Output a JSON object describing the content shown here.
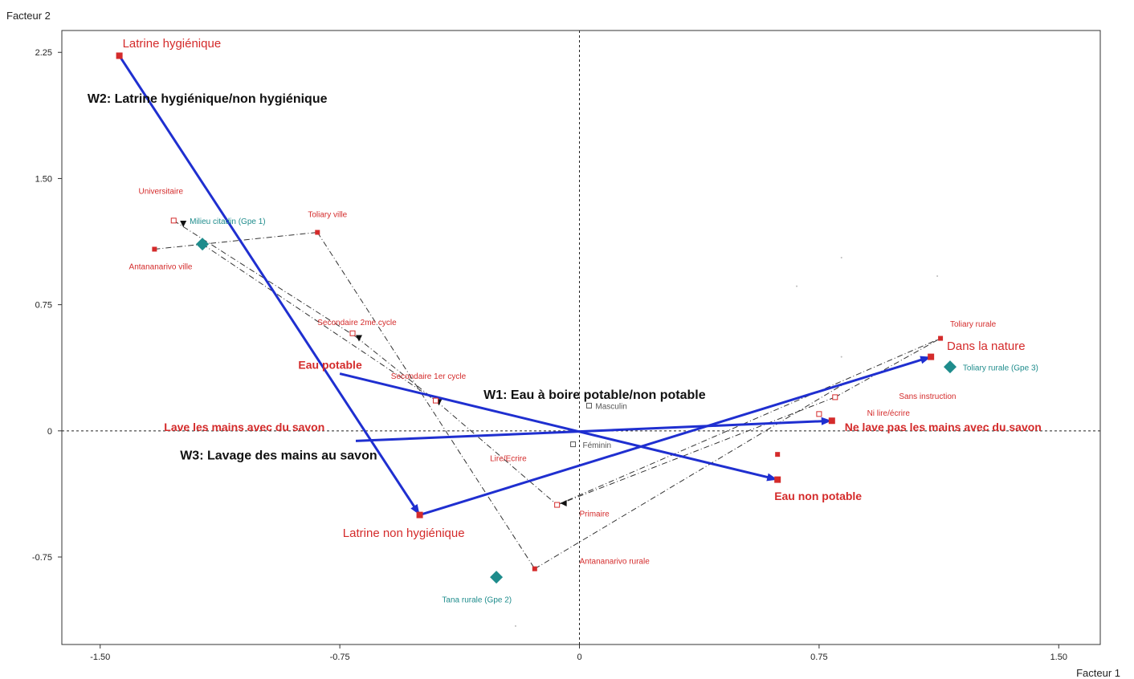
{
  "chart_data": {
    "type": "scatter",
    "xlabel": "Facteur 1",
    "ylabel": "Facteur 2",
    "xlim": [
      -1.62,
      1.63
    ],
    "ylim": [
      -1.27,
      2.38
    ],
    "xticks": [
      {
        "value": -1.5,
        "label": "-1.50"
      },
      {
        "value": -0.75,
        "label": "-0.75"
      },
      {
        "value": 0,
        "label": "0"
      },
      {
        "value": 0.75,
        "label": "0.75"
      },
      {
        "value": 1.5,
        "label": "1.50"
      }
    ],
    "yticks": [
      {
        "value": 2.25,
        "label": "2.25"
      },
      {
        "value": 1.5,
        "label": "1.50"
      },
      {
        "value": 0.75,
        "label": "0.75"
      },
      {
        "value": 0,
        "label": "0"
      },
      {
        "value": -0.75,
        "label": "-0.75"
      }
    ],
    "colors": {
      "red": "#d42b2b",
      "teal": "#1e8c8c",
      "blue": "#1f2fd0",
      "black": "#111111",
      "gray": "#555555"
    },
    "arrows": [
      {
        "from": [
          -1.44,
          2.23
        ],
        "to": [
          -0.5,
          -0.5
        ],
        "label": "W2: Latrine hygiénique/non hygiénique",
        "lx": -1.54,
        "ly": 1.95
      },
      {
        "from": [
          -0.75,
          0.34
        ],
        "to": [
          0.62,
          -0.29
        ],
        "label": "W1: Eau à boire potable/non potable",
        "lx": -0.3,
        "ly": 0.19
      },
      {
        "from": [
          -0.7,
          -0.06
        ],
        "to": [
          0.79,
          0.06
        ],
        "label": "W3: Lavage des mains au savon",
        "lx": -1.25,
        "ly": -0.17
      },
      {
        "from": [
          -0.5,
          -0.5
        ],
        "to": [
          1.1,
          0.44
        ],
        "label": "",
        "lx": 0,
        "ly": 0
      }
    ],
    "points": [
      {
        "label": "Latrine hygiénique",
        "x": -1.44,
        "y": 2.23,
        "marker": "square",
        "color": "red",
        "size": 15,
        "lx": -1.43,
        "ly": 2.28,
        "anchor": "start",
        "bold": false
      },
      {
        "label": "Latrine non hygiénique",
        "x": -0.5,
        "y": -0.5,
        "marker": "square",
        "color": "red",
        "size": 15,
        "lx": -0.55,
        "ly": -0.63,
        "anchor": "middle",
        "bold": false
      },
      {
        "label": "Dans la nature",
        "x": 1.1,
        "y": 0.44,
        "marker": "square",
        "color": "red",
        "size": 15,
        "lx": 1.15,
        "ly": 0.48,
        "anchor": "start",
        "bold": false
      },
      {
        "label": "Eau potable",
        "x": -0.75,
        "y": 0.34,
        "marker": "none",
        "color": "red",
        "size": 14,
        "lx": -0.88,
        "ly": 0.37,
        "anchor": "start",
        "bold": true
      },
      {
        "label": "Eau non potable",
        "x": 0.62,
        "y": -0.29,
        "marker": "square",
        "color": "red",
        "size": 14,
        "lx": 0.61,
        "ly": -0.41,
        "anchor": "start",
        "bold": true
      },
      {
        "label": "Lave les mains avec du savon",
        "x": -0.7,
        "y": -0.06,
        "marker": "none",
        "color": "red",
        "size": 14,
        "lx": -1.3,
        "ly": 0.0,
        "anchor": "start",
        "bold": true
      },
      {
        "label": "Ne lave pas les mains avec du savon",
        "x": 0.79,
        "y": 0.06,
        "marker": "square",
        "color": "red",
        "size": 14,
        "lx": 0.83,
        "ly": 0.0,
        "anchor": "start",
        "bold": true
      },
      {
        "label": "Universitaire",
        "x": -1.27,
        "y": 1.25,
        "marker": "open",
        "color": "red",
        "size": 10,
        "lx": -1.38,
        "ly": 1.41,
        "anchor": "start",
        "bold": false
      },
      {
        "label": "Milieu citadin (Gpe 1)",
        "x": -1.18,
        "y": 1.11,
        "marker": "diamond",
        "color": "teal",
        "size": 10,
        "lx": -1.22,
        "ly": 1.23,
        "anchor": "start",
        "bold": false
      },
      {
        "label": "Toliary ville",
        "x": -0.82,
        "y": 1.18,
        "marker": "square",
        "color": "red",
        "size": 10,
        "lx": -0.85,
        "ly": 1.27,
        "anchor": "start",
        "bold": false
      },
      {
        "label": "Antananarivo ville",
        "x": -1.33,
        "y": 1.08,
        "marker": "square",
        "color": "red",
        "size": 10,
        "lx": -1.41,
        "ly": 0.96,
        "anchor": "start",
        "bold": false
      },
      {
        "label": "Secondaire 2me cycle",
        "x": -0.71,
        "y": 0.58,
        "marker": "open",
        "color": "red",
        "size": 10,
        "lx": -0.82,
        "ly": 0.63,
        "anchor": "start",
        "bold": false
      },
      {
        "label": "Secondaire 1er cycle",
        "x": -0.45,
        "y": 0.18,
        "marker": "open",
        "color": "red",
        "size": 10,
        "lx": -0.59,
        "ly": 0.31,
        "anchor": "start",
        "bold": false
      },
      {
        "label": "Masculin",
        "x": 0.03,
        "y": 0.15,
        "marker": "open",
        "color": "gray",
        "size": 10,
        "lx": 0.05,
        "ly": 0.13,
        "anchor": "start",
        "bold": false
      },
      {
        "label": "Féminin",
        "x": -0.02,
        "y": -0.08,
        "marker": "open",
        "color": "gray",
        "size": 10,
        "lx": 0.01,
        "ly": -0.1,
        "anchor": "start",
        "bold": false
      },
      {
        "label": "Lire/Ecrire",
        "x": -0.3,
        "y": -0.05,
        "marker": "none",
        "color": "red",
        "size": 10,
        "lx": -0.28,
        "ly": -0.18,
        "anchor": "start",
        "bold": false
      },
      {
        "label": "Primaire",
        "x": -0.07,
        "y": -0.44,
        "marker": "open",
        "color": "red",
        "size": 10,
        "lx": 0.0,
        "ly": -0.51,
        "anchor": "start",
        "bold": false
      },
      {
        "label": "Antananarivo rurale",
        "x": -0.14,
        "y": -0.82,
        "marker": "square",
        "color": "red",
        "size": 10,
        "lx": 0.0,
        "ly": -0.79,
        "anchor": "start",
        "bold": false
      },
      {
        "label": "Tana rurale (Gpe 2)",
        "x": -0.26,
        "y": -0.87,
        "marker": "diamond",
        "color": "teal",
        "size": 10,
        "lx": -0.43,
        "ly": -1.02,
        "anchor": "start",
        "bold": false
      },
      {
        "label": "Toliary rurale",
        "x": 1.13,
        "y": 0.55,
        "marker": "square",
        "color": "red",
        "size": 10,
        "lx": 1.16,
        "ly": 0.62,
        "anchor": "start",
        "bold": false
      },
      {
        "label": "Toliary rurale (Gpe 3)",
        "x": 1.16,
        "y": 0.38,
        "marker": "diamond",
        "color": "teal",
        "size": 10,
        "lx": 1.2,
        "ly": 0.36,
        "anchor": "start",
        "bold": false
      },
      {
        "label": "Sans instruction",
        "x": 0.8,
        "y": 0.2,
        "marker": "open",
        "color": "red",
        "size": 10,
        "lx": 1.0,
        "ly": 0.19,
        "anchor": "start",
        "bold": false
      },
      {
        "label": "Ni lire/écrire",
        "x": 0.75,
        "y": 0.1,
        "marker": "open",
        "color": "red",
        "size": 10,
        "lx": 0.9,
        "ly": 0.09,
        "anchor": "start",
        "bold": false
      },
      {
        "label": "",
        "x": 0.62,
        "y": -0.14,
        "marker": "square",
        "color": "red",
        "size": 10,
        "lx": 0,
        "ly": 0,
        "anchor": "start",
        "bold": false
      }
    ],
    "dashdot_lines": [
      [
        [
          -0.82,
          1.18
        ],
        [
          -0.14,
          -0.82
        ]
      ],
      [
        [
          -1.33,
          1.08
        ],
        [
          -0.82,
          1.18
        ]
      ],
      [
        [
          -1.18,
          1.11
        ],
        [
          -0.45,
          0.18
        ]
      ],
      [
        [
          -1.27,
          1.25
        ],
        [
          -0.7,
          0.56
        ]
      ],
      [
        [
          -0.7,
          0.56
        ],
        [
          -0.45,
          0.18
        ]
      ],
      [
        [
          -0.45,
          0.18
        ],
        [
          -0.07,
          -0.44
        ]
      ],
      [
        [
          -0.07,
          -0.44
        ],
        [
          1.13,
          0.55
        ]
      ],
      [
        [
          -0.14,
          -0.82
        ],
        [
          0.82,
          0.27
        ]
      ],
      [
        [
          -0.07,
          -0.44
        ],
        [
          0.8,
          0.2
        ]
      ],
      [
        [
          0.8,
          0.2
        ],
        [
          1.13,
          0.55
        ]
      ]
    ],
    "arrowheads": [
      {
        "x": -1.24,
        "y": 1.23,
        "dir": "down"
      },
      {
        "x": -0.69,
        "y": 0.55,
        "dir": "down"
      },
      {
        "x": -0.44,
        "y": 0.17,
        "dir": "down"
      },
      {
        "x": -0.05,
        "y": -0.43,
        "dir": "left"
      }
    ],
    "dots": [
      [
        0.82,
        1.03
      ],
      [
        0.68,
        0.86
      ],
      [
        1.12,
        0.92
      ],
      [
        0.82,
        0.44
      ],
      [
        -0.2,
        -1.16
      ]
    ]
  }
}
